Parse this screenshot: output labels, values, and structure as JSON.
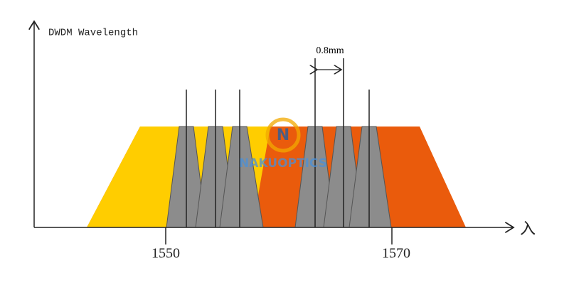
{
  "title": "DWDM Wavelength",
  "axis": {
    "x_symbol": "入",
    "ticks": [
      "1550",
      "1570"
    ]
  },
  "annotation": "0.8mm",
  "watermark": {
    "logo": "N",
    "text": "NAKUOPTICS"
  }
}
